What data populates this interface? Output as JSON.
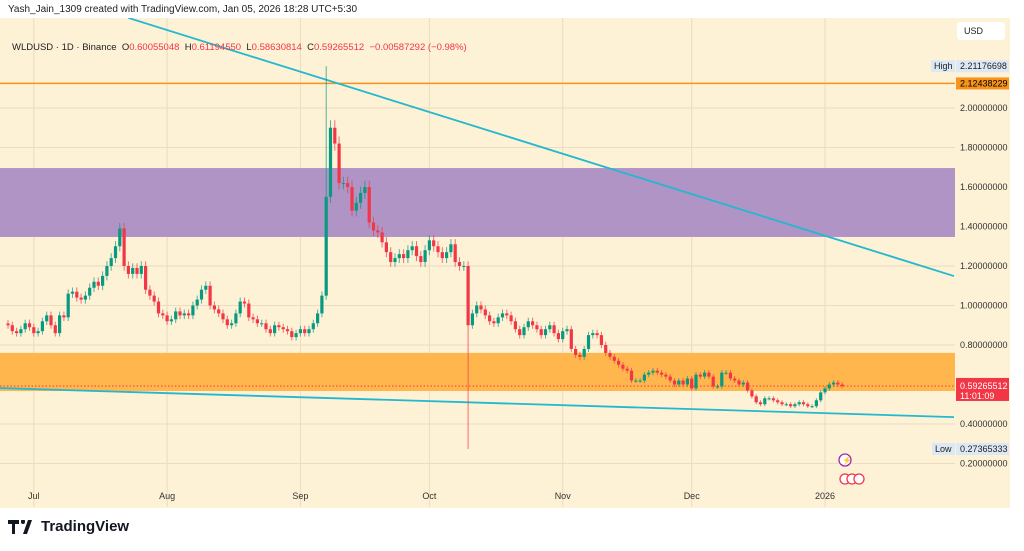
{
  "author_line": "Yash_Jain_1309 created with TradingView.com, Jan 05, 2026 18:28 UTC+5:30",
  "legend": {
    "symbol": "WLDUSD · 1D · Binance",
    "o_label": "O",
    "o": "0.60055048",
    "h_label": "H",
    "h": "0.61194550",
    "l_label": "L",
    "l": "0.58630814",
    "c_label": "C",
    "c": "0.59265512",
    "change": "−0.00587292 (−0.98%)"
  },
  "logo_text": "TradingView",
  "colors": {
    "up": "#089981",
    "down": "#f23645",
    "background": "#fdf1d6",
    "trendline": "#22b8cf",
    "resistance": "#f7931a",
    "purple_zone": "#b094c6",
    "orange_zone": "#ffb74d"
  },
  "chart_data": {
    "type": "candlestick",
    "currency": "USD",
    "start_date": "2025-06-25",
    "closes": [
      0.9,
      0.87,
      0.86,
      0.88,
      0.91,
      0.89,
      0.86,
      0.87,
      0.92,
      0.95,
      0.9,
      0.86,
      0.95,
      0.94,
      1.06,
      1.07,
      1.04,
      1.03,
      1.05,
      1.09,
      1.12,
      1.1,
      1.15,
      1.2,
      1.24,
      1.3,
      1.39,
      1.2,
      1.16,
      1.19,
      1.16,
      1.2,
      1.08,
      1.05,
      1.02,
      0.96,
      0.95,
      0.92,
      0.93,
      0.97,
      0.95,
      0.96,
      0.95,
      1.0,
      1.03,
      1.08,
      1.1,
      1.0,
      0.98,
      0.96,
      0.93,
      0.9,
      0.91,
      0.96,
      1.02,
      1.01,
      0.94,
      0.93,
      0.91,
      0.91,
      0.88,
      0.86,
      0.9,
      0.89,
      0.88,
      0.87,
      0.84,
      0.86,
      0.88,
      0.86,
      0.88,
      0.91,
      0.96,
      1.05,
      1.55,
      1.9,
      1.82,
      1.62,
      1.62,
      1.6,
      1.48,
      1.52,
      1.57,
      1.6,
      1.42,
      1.38,
      1.37,
      1.32,
      1.27,
      1.22,
      1.24,
      1.26,
      1.24,
      1.28,
      1.3,
      1.25,
      1.22,
      1.28,
      1.33,
      1.3,
      1.27,
      1.24,
      1.27,
      1.31,
      1.22,
      1.2,
      1.2,
      0.9,
      0.96,
      1.0,
      0.98,
      0.95,
      0.92,
      0.91,
      0.94,
      0.96,
      0.95,
      0.92,
      0.88,
      0.85,
      0.89,
      0.92,
      0.9,
      0.88,
      0.85,
      0.88,
      0.9,
      0.86,
      0.83,
      0.87,
      0.88,
      0.78,
      0.75,
      0.74,
      0.78,
      0.85,
      0.86,
      0.85,
      0.8,
      0.76,
      0.74,
      0.72,
      0.7,
      0.68,
      0.67,
      0.62,
      0.62,
      0.62,
      0.65,
      0.66,
      0.67,
      0.66,
      0.65,
      0.64,
      0.62,
      0.6,
      0.62,
      0.6,
      0.63,
      0.58,
      0.65,
      0.64,
      0.66,
      0.64,
      0.59,
      0.59,
      0.66,
      0.66,
      0.63,
      0.62,
      0.6,
      0.61,
      0.57,
      0.54,
      0.51,
      0.5,
      0.53,
      0.53,
      0.52,
      0.51,
      0.5,
      0.5,
      0.49,
      0.5,
      0.51,
      0.5,
      0.49,
      0.49,
      0.52,
      0.56,
      0.58,
      0.6,
      0.61,
      0.6,
      0.59265512
    ],
    "wick_extremes": [
      {
        "date": "2025-09-07",
        "high": 2.21176698
      },
      {
        "date": "2025-10-10",
        "low": 0.27365333
      }
    ],
    "y_ticks": [
      "2.00000000",
      "1.80000000",
      "1.60000000",
      "1.40000000",
      "1.20000000",
      "1.00000000",
      "0.80000000",
      "0.40000000",
      "0.20000000"
    ],
    "y_tick_values": [
      2.0,
      1.8,
      1.6,
      1.4,
      1.2,
      1.0,
      0.8,
      0.4,
      0.2
    ],
    "ylim": [
      0.0,
      2.5
    ],
    "x_ticks": [
      {
        "label": "Jul",
        "date": "2025-07-01"
      },
      {
        "label": "Aug",
        "date": "2025-08-01"
      },
      {
        "label": "Sep",
        "date": "2025-09-01"
      },
      {
        "label": "Oct",
        "date": "2025-10-01"
      },
      {
        "label": "Nov",
        "date": "2025-11-01"
      },
      {
        "label": "Dec",
        "date": "2025-12-01"
      },
      {
        "label": "2026",
        "date": "2026-01-01"
      }
    ],
    "high_label": "High",
    "high_value": "2.21176698",
    "low_label": "Low",
    "low_value": "0.27365333",
    "resistance_level": {
      "label": "2.12438229",
      "value": 2.12438229
    },
    "last_price": {
      "label": "0.59265512",
      "value": 0.59265512,
      "countdown": "11:01:09"
    },
    "zones": [
      {
        "name": "purple",
        "from": 1.347,
        "to": 1.696
      },
      {
        "name": "orange",
        "from": 0.567,
        "to": 0.76
      }
    ],
    "trendlines": [
      {
        "from": {
          "date": "2025-07-23",
          "price": 2.456
        },
        "to": {
          "date": "2026-01-31",
          "price": 1.149
        }
      },
      {
        "from": {
          "date": "2025-06-23",
          "price": 0.582
        },
        "to": {
          "date": "2026-01-31",
          "price": 0.435
        }
      }
    ],
    "grid": true
  }
}
